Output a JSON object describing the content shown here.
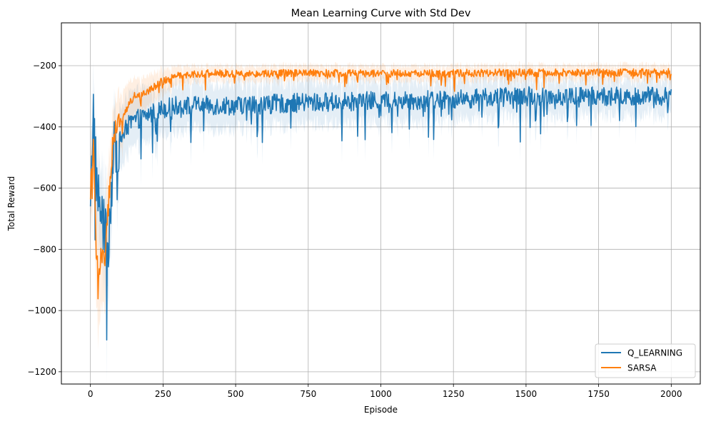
{
  "chart_data": {
    "type": "line",
    "title": "Mean Learning Curve with Std Dev",
    "xlabel": "Episode",
    "ylabel": "Total Reward",
    "xlim": [
      -100,
      2100
    ],
    "ylim": [
      -1240,
      -60
    ],
    "xticks": [
      0,
      250,
      500,
      750,
      1000,
      1250,
      1500,
      1750,
      2000
    ],
    "xtick_labels": [
      "0",
      "250",
      "500",
      "750",
      "1000",
      "1250",
      "1500",
      "1750",
      "2000"
    ],
    "yticks": [
      -1200,
      -1000,
      -800,
      -600,
      -400,
      -200
    ],
    "ytick_labels": [
      "−1200",
      "−1000",
      "−800",
      "−600",
      "−400",
      "−200"
    ],
    "grid": true,
    "legend_position": "lower-right",
    "episodes": 2000,
    "series": [
      {
        "name": "Q_LEARNING",
        "color": "#1f77b4",
        "x": [
          0,
          10,
          20,
          30,
          40,
          50,
          60,
          70,
          80,
          100,
          125,
          150,
          200,
          250,
          300,
          400,
          500,
          750,
          1000,
          1250,
          1500,
          1750,
          2000
        ],
        "mean": [
          -700,
          -330,
          -560,
          -650,
          -700,
          -750,
          -800,
          -640,
          -480,
          -450,
          -400,
          -380,
          -360,
          -340,
          -330,
          -330,
          -330,
          -320,
          -315,
          -310,
          -300,
          -300,
          -300
        ],
        "std": [
          120,
          110,
          130,
          140,
          150,
          150,
          140,
          120,
          110,
          100,
          95,
          90,
          90,
          80,
          80,
          75,
          75,
          70,
          70,
          65,
          65,
          60,
          60
        ],
        "noise": 45
      },
      {
        "name": "SARSA",
        "color": "#ff7f0e",
        "x": [
          0,
          10,
          20,
          30,
          40,
          50,
          60,
          70,
          80,
          100,
          125,
          150,
          200,
          250,
          300,
          400,
          500,
          750,
          1000,
          1250,
          1500,
          1750,
          2000
        ],
        "mean": [
          -600,
          -470,
          -820,
          -870,
          -780,
          -840,
          -680,
          -550,
          -420,
          -390,
          -340,
          -300,
          -280,
          -250,
          -230,
          -225,
          -225,
          -225,
          -225,
          -225,
          -222,
          -222,
          -222
        ],
        "std": [
          140,
          130,
          160,
          170,
          170,
          160,
          140,
          120,
          100,
          90,
          80,
          60,
          50,
          40,
          30,
          25,
          25,
          25,
          25,
          25,
          25,
          25,
          25
        ],
        "noise": 18
      }
    ]
  }
}
